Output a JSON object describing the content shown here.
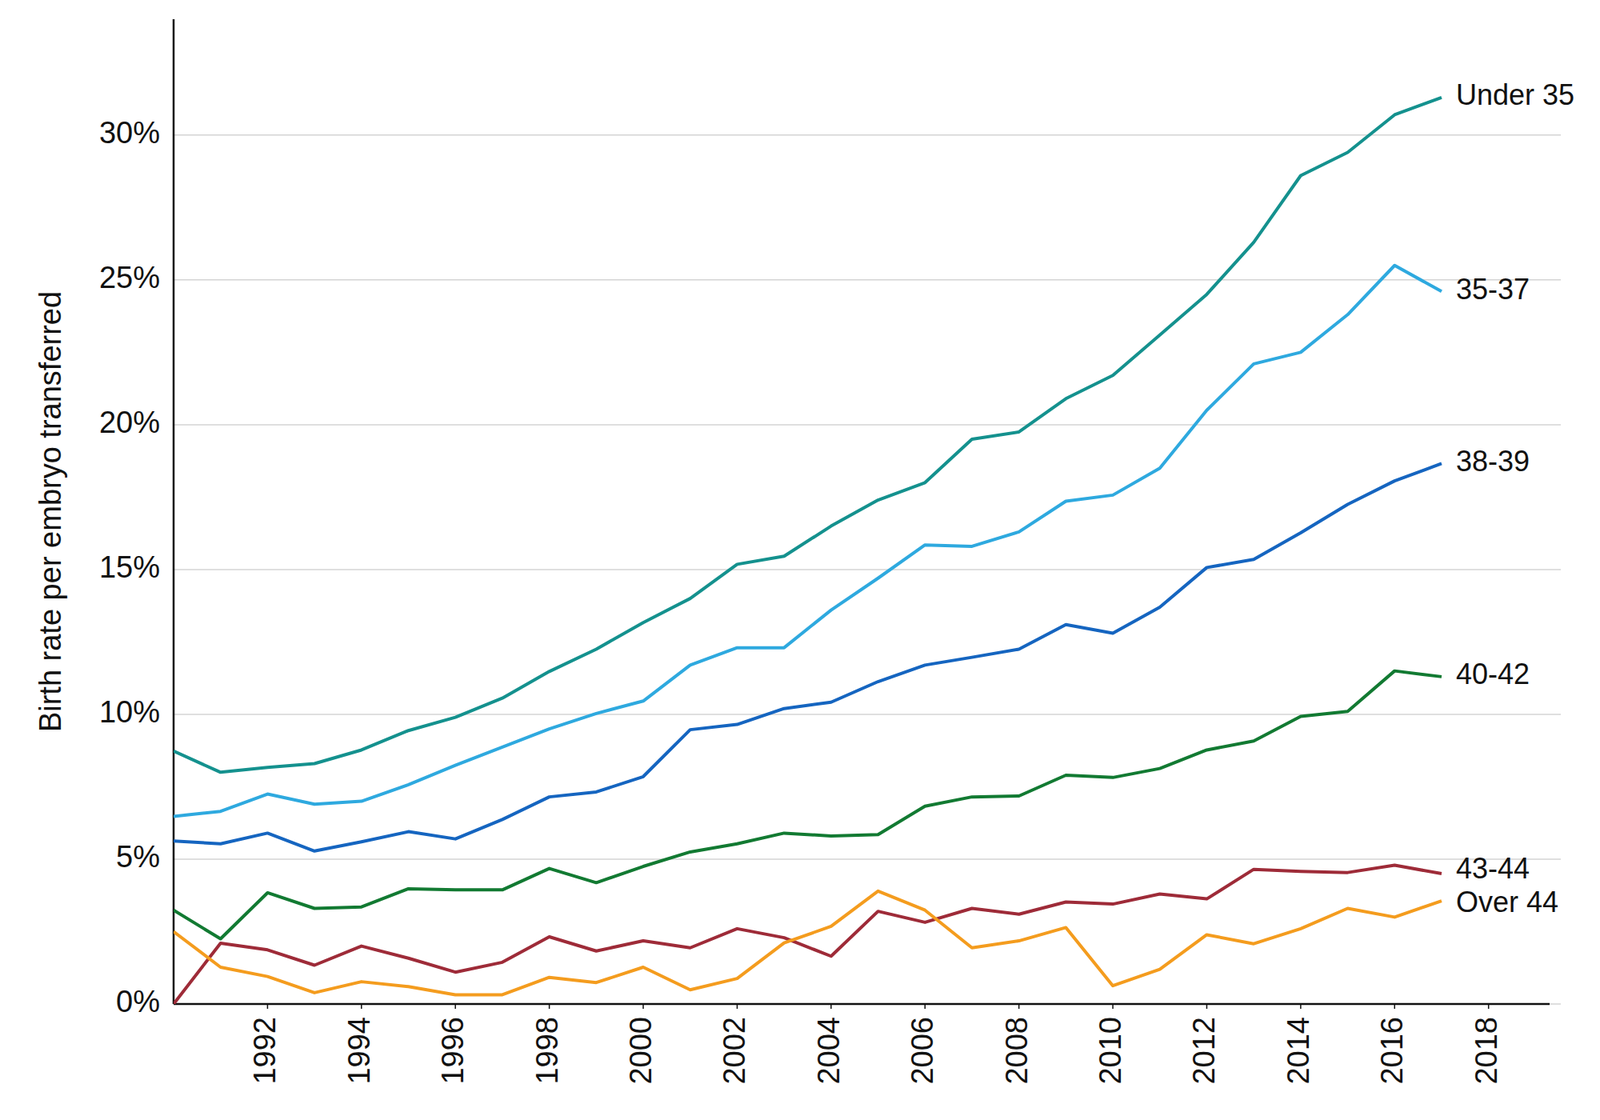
{
  "chart_data": {
    "type": "line",
    "y_label": "Birth rate per embryo transferred",
    "x": [
      1990,
      1991,
      1992,
      1993,
      1994,
      1995,
      1996,
      1997,
      1998,
      1999,
      2000,
      2001,
      2002,
      2003,
      2004,
      2005,
      2006,
      2007,
      2008,
      2009,
      2010,
      2011,
      2012,
      2013,
      2014,
      2015,
      2016,
      2017
    ],
    "xlim": [
      1990,
      2019.3
    ],
    "xticks": [
      1992,
      1994,
      1996,
      1998,
      2000,
      2002,
      2004,
      2006,
      2008,
      2010,
      2012,
      2014,
      2016,
      2018
    ],
    "ylim": [
      0,
      34
    ],
    "yticks": [
      {
        "value": 0,
        "label": "0%"
      },
      {
        "value": 5,
        "label": "5%"
      },
      {
        "value": 10,
        "label": "10%"
      },
      {
        "value": 15,
        "label": "15%"
      },
      {
        "value": 20,
        "label": "20%"
      },
      {
        "value": 25,
        "label": "25%"
      },
      {
        "value": 30,
        "label": "30%"
      }
    ],
    "grid": true,
    "series": [
      {
        "name": "Under 35",
        "color": "#14918e",
        "values": [
          8.73,
          8.0,
          8.17,
          8.3,
          8.77,
          9.44,
          9.9,
          10.56,
          11.48,
          12.25,
          13.17,
          14.0,
          15.18,
          15.46,
          16.5,
          17.4,
          18.0,
          19.5,
          19.75,
          20.9,
          21.7,
          23.1,
          24.5,
          26.3,
          28.6,
          29.4,
          30.7,
          31.3
        ]
      },
      {
        "name": "35-37",
        "color": "#2ea9df",
        "values": [
          6.48,
          6.65,
          7.25,
          6.9,
          7.0,
          7.57,
          8.24,
          8.87,
          9.5,
          10.03,
          10.46,
          11.7,
          12.3,
          12.3,
          13.6,
          14.7,
          15.85,
          15.8,
          16.3,
          17.36,
          17.57,
          18.5,
          20.5,
          22.1,
          22.5,
          23.8,
          25.5,
          24.6
        ]
      },
      {
        "name": "38-39",
        "color": "#1565c0",
        "values": [
          5.63,
          5.53,
          5.9,
          5.28,
          5.6,
          5.95,
          5.7,
          6.37,
          7.15,
          7.32,
          7.85,
          9.47,
          9.65,
          10.2,
          10.42,
          11.13,
          11.7,
          11.97,
          12.25,
          13.1,
          12.8,
          13.7,
          15.07,
          15.35,
          16.27,
          17.25,
          18.06,
          18.66
        ]
      },
      {
        "name": "40-42",
        "color": "#127a32",
        "values": [
          3.24,
          2.25,
          3.84,
          3.3,
          3.35,
          3.98,
          3.94,
          3.94,
          4.68,
          4.19,
          4.75,
          5.25,
          5.53,
          5.9,
          5.8,
          5.85,
          6.83,
          7.15,
          7.18,
          7.9,
          7.82,
          8.13,
          8.77,
          9.08,
          9.93,
          10.1,
          11.5,
          11.3
        ]
      },
      {
        "name": "43-44",
        "color": "#9e2b38",
        "values": [
          0.0,
          2.1,
          1.87,
          1.34,
          2.0,
          1.58,
          1.1,
          1.44,
          2.32,
          1.83,
          2.18,
          1.94,
          2.6,
          2.29,
          1.65,
          3.2,
          2.82,
          3.3,
          3.1,
          3.52,
          3.45,
          3.8,
          3.63,
          4.65,
          4.58,
          4.54,
          4.79,
          4.5
        ]
      },
      {
        "name": "Over 44",
        "color": "#f49c1e",
        "values": [
          2.5,
          1.27,
          0.95,
          0.39,
          0.77,
          0.6,
          0.32,
          0.32,
          0.92,
          0.74,
          1.27,
          0.49,
          0.88,
          2.11,
          2.68,
          3.9,
          3.24,
          1.94,
          2.18,
          2.64,
          0.63,
          1.2,
          2.39,
          2.08,
          2.6,
          3.3,
          3.0,
          3.56
        ]
      }
    ]
  }
}
